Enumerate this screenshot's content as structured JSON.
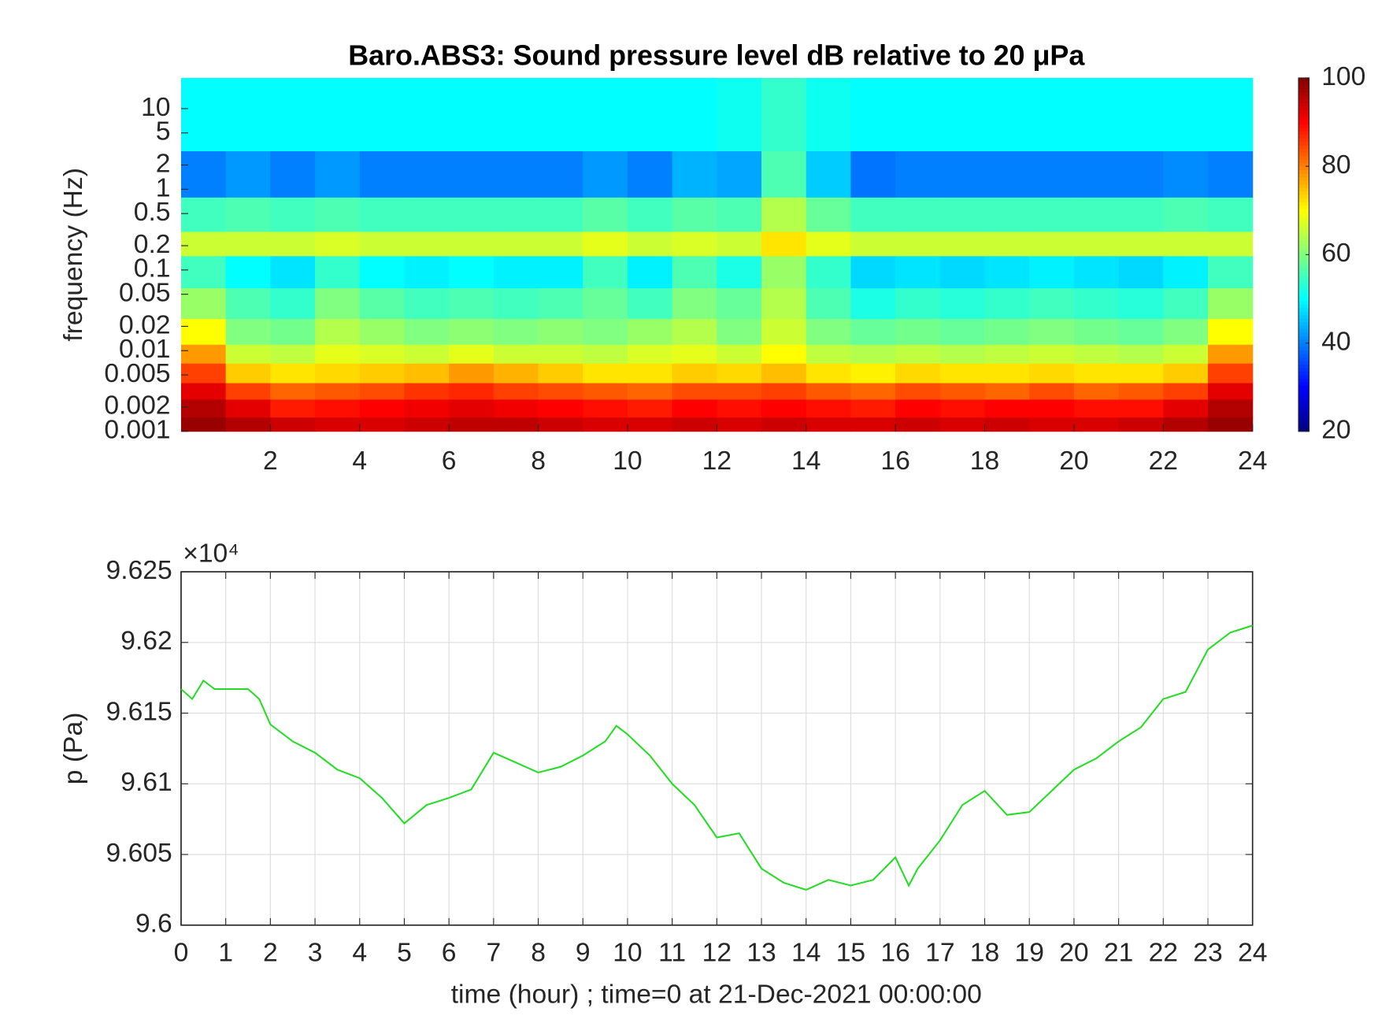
{
  "chart_data": [
    {
      "type": "heatmap",
      "title": "Baro.ABS3: Sound pressure level dB relative to 20 μPa",
      "ylabel": "frequency (Hz)",
      "xlim": [
        0,
        24
      ],
      "xticks": [
        2,
        4,
        6,
        8,
        10,
        12,
        14,
        16,
        18,
        20,
        22,
        24
      ],
      "ylim": [
        0.001,
        24
      ],
      "log_y": true,
      "yticks": [
        0.001,
        0.002,
        0.005,
        0.01,
        0.02,
        0.05,
        0.1,
        0.2,
        0.5,
        1,
        2,
        5,
        10
      ],
      "colormap": "jet",
      "clim": [
        20,
        100
      ],
      "cticks": [
        20,
        40,
        60,
        80,
        100
      ],
      "xbins": [
        0,
        1,
        2,
        3,
        4,
        5,
        6,
        7,
        8,
        9,
        10,
        11,
        12,
        13,
        14,
        15,
        16,
        17,
        18,
        19,
        20,
        21,
        22,
        23,
        24
      ],
      "ybins": [
        0.001,
        0.0015,
        0.0025,
        0.004,
        0.007,
        0.012,
        0.025,
        0.06,
        0.15,
        0.3,
        0.8,
        3,
        24
      ],
      "values": [
        [
          98,
          96,
          94,
          93,
          93,
          94,
          95,
          95,
          94,
          93,
          93,
          94,
          93,
          94,
          93,
          93,
          94,
          93,
          94,
          93,
          93,
          94,
          96,
          98
        ],
        [
          96,
          92,
          88,
          89,
          90,
          91,
          92,
          91,
          90,
          89,
          88,
          90,
          89,
          90,
          89,
          88,
          90,
          89,
          90,
          90,
          89,
          89,
          92,
          96
        ],
        [
          92,
          85,
          82,
          83,
          84,
          86,
          87,
          85,
          84,
          83,
          82,
          84,
          84,
          85,
          83,
          82,
          84,
          83,
          82,
          84,
          82,
          83,
          85,
          92
        ],
        [
          85,
          74,
          72,
          73,
          74,
          75,
          78,
          76,
          74,
          72,
          72,
          74,
          73,
          75,
          72,
          71,
          73,
          72,
          72,
          73,
          72,
          72,
          74,
          85
        ],
        [
          78,
          66,
          65,
          68,
          67,
          66,
          68,
          66,
          66,
          65,
          67,
          68,
          66,
          70,
          65,
          64,
          65,
          64,
          65,
          66,
          65,
          64,
          66,
          78
        ],
        [
          70,
          60,
          59,
          64,
          62,
          60,
          61,
          60,
          61,
          60,
          62,
          64,
          60,
          66,
          60,
          58,
          59,
          58,
          59,
          60,
          59,
          58,
          60,
          70
        ],
        [
          62,
          56,
          54,
          60,
          57,
          55,
          56,
          55,
          56,
          58,
          55,
          60,
          58,
          64,
          56,
          52,
          54,
          53,
          54,
          55,
          54,
          53,
          55,
          62
        ],
        [
          55,
          50,
          48,
          54,
          50,
          49,
          50,
          49,
          49,
          55,
          49,
          56,
          52,
          62,
          54,
          47,
          48,
          47,
          48,
          49,
          48,
          47,
          49,
          55
        ],
        [
          66,
          66,
          66,
          67,
          66,
          66,
          66,
          66,
          66,
          68,
          66,
          67,
          66,
          72,
          68,
          66,
          66,
          66,
          66,
          66,
          66,
          66,
          66,
          66
        ],
        [
          55,
          56,
          55,
          56,
          55,
          55,
          55,
          55,
          55,
          57,
          55,
          57,
          56,
          64,
          58,
          55,
          55,
          55,
          55,
          55,
          55,
          55,
          56,
          55
        ],
        [
          40,
          42,
          40,
          42,
          40,
          40,
          40,
          40,
          40,
          42,
          40,
          44,
          43,
          56,
          46,
          39,
          40,
          40,
          40,
          40,
          40,
          40,
          41,
          40
        ],
        [
          50,
          50,
          50,
          50,
          50,
          50,
          50,
          50,
          50,
          50,
          50,
          50,
          51,
          54,
          51,
          50,
          50,
          50,
          50,
          50,
          50,
          50,
          50,
          50
        ]
      ]
    },
    {
      "type": "line",
      "xlabel": "time (hour) ; time=0 at 21-Dec-2021 00:00:00",
      "ylabel": "p (Pa)",
      "y_multiplier": "×10⁴",
      "xlim": [
        0,
        24
      ],
      "xticks": [
        0,
        1,
        2,
        3,
        4,
        5,
        6,
        7,
        8,
        9,
        10,
        11,
        12,
        13,
        14,
        15,
        16,
        17,
        18,
        19,
        20,
        21,
        22,
        23,
        24
      ],
      "ylim": [
        96000,
        96250
      ],
      "yticks": [
        {
          "value": 96000,
          "label": "9.6"
        },
        {
          "value": 96050,
          "label": "9.605"
        },
        {
          "value": 96100,
          "label": "9.61"
        },
        {
          "value": 96150,
          "label": "9.615"
        },
        {
          "value": 96200,
          "label": "9.62"
        },
        {
          "value": 96250,
          "label": "9.625"
        }
      ],
      "grid": true,
      "color": "#22dd22",
      "x": [
        0,
        0.25,
        0.5,
        0.75,
        1,
        1.5,
        1.75,
        2,
        2.5,
        3,
        3.5,
        4,
        4.5,
        5,
        5.5,
        6,
        6.5,
        7,
        7.5,
        8,
        8.5,
        9,
        9.5,
        9.75,
        10,
        10.5,
        11,
        11.5,
        12,
        12.5,
        13,
        13.5,
        14,
        14.5,
        15,
        15.5,
        16,
        16.3,
        16.5,
        17,
        17.5,
        18,
        18.5,
        19,
        19.5,
        20,
        20.5,
        21,
        21.5,
        22,
        22.5,
        23,
        23.5,
        24
      ],
      "values": [
        96167,
        96160,
        96173,
        96167,
        96167,
        96167,
        96160,
        96142,
        96130,
        96122,
        96110,
        96104,
        96090,
        96072,
        96085,
        96090,
        96096,
        96122,
        96115,
        96108,
        96112,
        96120,
        96130,
        96141,
        96135,
        96120,
        96100,
        96085,
        96062,
        96065,
        96040,
        96030,
        96025,
        96032,
        96028,
        96032,
        96048,
        96028,
        96040,
        96060,
        96085,
        96095,
        96078,
        96080,
        96095,
        96110,
        96118,
        96130,
        96140,
        96160,
        96165,
        96195,
        96207,
        96212
      ]
    }
  ]
}
